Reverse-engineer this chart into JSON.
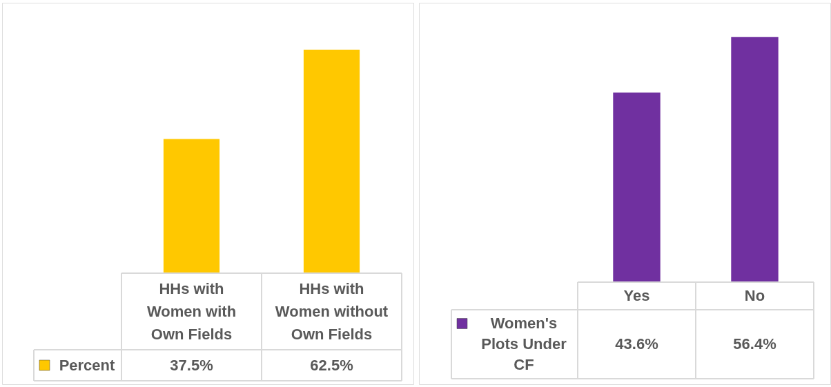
{
  "chart_data": [
    {
      "type": "bar",
      "categories": [
        "HHs with Women with Own Fields",
        "HHs with Women without Own Fields"
      ],
      "series": [
        {
          "name": "Percent",
          "color": "#ffc800",
          "values": [
            37.5,
            62.5
          ],
          "value_labels": [
            "37.5%",
            "62.5%"
          ]
        }
      ],
      "legend": "bottom left"
    },
    {
      "type": "bar",
      "categories": [
        "Yes",
        "No"
      ],
      "series": [
        {
          "name": "Women's Plots Under CF",
          "color": "#7030a0",
          "values": [
            43.6,
            56.4
          ],
          "value_labels": [
            "43.6%",
            "56.4%"
          ]
        }
      ],
      "legend": "bottom left"
    }
  ]
}
